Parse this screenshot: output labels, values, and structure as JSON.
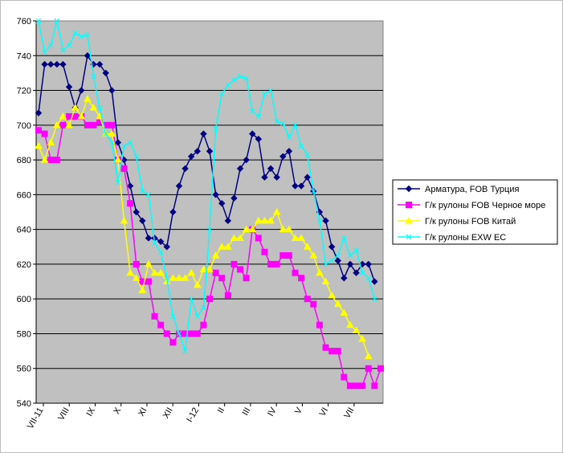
{
  "chart_data": {
    "type": "line",
    "title": "",
    "xlabel": "",
    "ylabel": "",
    "ylim": [
      540,
      760
    ],
    "y_ticks": [
      540,
      560,
      580,
      600,
      620,
      640,
      660,
      680,
      700,
      720,
      740,
      760
    ],
    "x_tick_labels": [
      "VII-11",
      "VIII",
      "IX",
      "X",
      "XI",
      "XII",
      "I-12",
      "II",
      "III",
      "IV",
      "V",
      "VI",
      "VII"
    ],
    "grid": "horizontal",
    "plot_background": "#c0c0c0",
    "legend_position": "right",
    "series": [
      {
        "name": "Арматура, FOB Турция",
        "color": "#000080",
        "marker": "diamond",
        "values": [
          707,
          735,
          735,
          735,
          735,
          722,
          710,
          720,
          740,
          735,
          735,
          730,
          720,
          690,
          680,
          665,
          650,
          645,
          635,
          635,
          633,
          630,
          650,
          665,
          675,
          682,
          685,
          695,
          685,
          660,
          655,
          645,
          658,
          675,
          680,
          695,
          692,
          670,
          675,
          670,
          682,
          685,
          665,
          665,
          670,
          662,
          650,
          645,
          630,
          622,
          612,
          620,
          615,
          620,
          620,
          610
        ]
      },
      {
        "name": "Г/к рулоны FOB Черное море",
        "color": "#ff00ff",
        "marker": "square",
        "values": [
          697,
          695,
          680,
          680,
          700,
          705,
          705,
          705,
          700,
          700,
          702,
          700,
          700,
          680,
          675,
          655,
          620,
          610,
          610,
          590,
          585,
          580,
          575,
          580,
          580,
          580,
          580,
          585,
          600,
          615,
          612,
          602,
          620,
          617,
          612,
          640,
          635,
          627,
          620,
          620,
          625,
          625,
          615,
          612,
          600,
          597,
          585,
          572,
          570,
          570,
          555,
          550,
          550,
          550,
          560,
          550,
          560
        ]
      },
      {
        "name": "Г/к рулоны FOB Китай",
        "color": "#ffff00",
        "marker": "triangle",
        "values": [
          688,
          680,
          690,
          700,
          705,
          700,
          710,
          705,
          715,
          710,
          705,
          695,
          695,
          680,
          645,
          615,
          612,
          605,
          620,
          615,
          615,
          610,
          612,
          612,
          612,
          615,
          608,
          617,
          617,
          625,
          630,
          630,
          635,
          635,
          640,
          640,
          645,
          645,
          645,
          650,
          640,
          640,
          635,
          635,
          630,
          625,
          615,
          610,
          602,
          597,
          592,
          585,
          582,
          577,
          567
        ]
      },
      {
        "name": "Г/к рулоны EXW EC",
        "color": "#00ffff",
        "marker": "x",
        "values": [
          760,
          742,
          746,
          760,
          743,
          746,
          753,
          751,
          752,
          728,
          710,
          695,
          690,
          667,
          688,
          690,
          682,
          662,
          660,
          632,
          627,
          612,
          590,
          580,
          570,
          600,
          590,
          595,
          640,
          698,
          718,
          723,
          726,
          728,
          727,
          708,
          705,
          718,
          720,
          702,
          701,
          693,
          700,
          688,
          683,
          662,
          645,
          620,
          622,
          625,
          635,
          625,
          628,
          615,
          612,
          600
        ]
      }
    ]
  }
}
